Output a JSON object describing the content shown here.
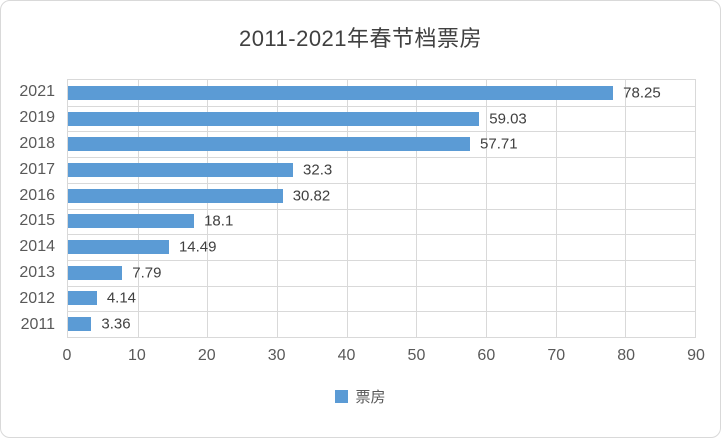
{
  "chart_data": {
    "type": "bar",
    "orientation": "horizontal",
    "title": "2011-2021年春节档票房",
    "categories": [
      "2021",
      "2019",
      "2018",
      "2017",
      "2016",
      "2015",
      "2014",
      "2013",
      "2012",
      "2011"
    ],
    "values": [
      78.25,
      59.03,
      57.71,
      32.3,
      30.82,
      18.1,
      14.49,
      7.79,
      4.14,
      3.36
    ],
    "value_labels": [
      "78.25",
      "59.03",
      "57.71",
      "32.3",
      "30.82",
      "18.1",
      "14.49",
      "7.79",
      "4.14",
      "3.36"
    ],
    "series_name": "票房",
    "xlabel": "",
    "ylabel": "",
    "xlim": [
      0,
      90
    ],
    "xticks": [
      0,
      10,
      20,
      30,
      40,
      50,
      60,
      70,
      80,
      90
    ],
    "grid": true,
    "legend_position": "bottom",
    "colors": {
      "bar": "#5b9bd5",
      "gridline": "#d9d9d9",
      "plot_border": "#d9d9d9",
      "chart_border": "#d9d9d9",
      "title_text": "#404040",
      "axis_text": "#595959",
      "value_text": "#404040",
      "background": "#ffffff"
    }
  }
}
